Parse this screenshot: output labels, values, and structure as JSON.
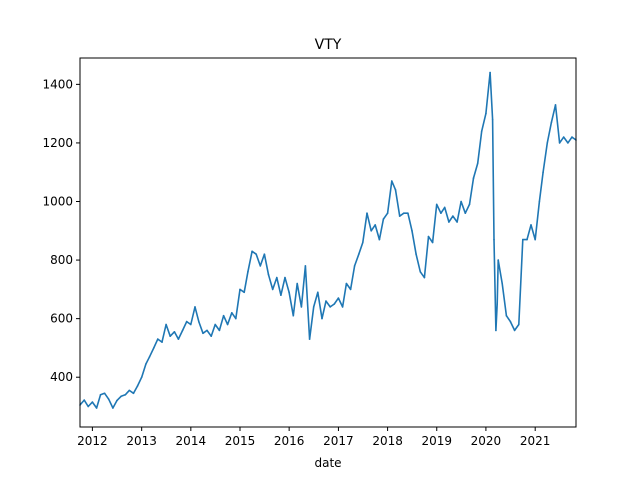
{
  "chart_data": {
    "type": "line",
    "title": "VTY",
    "xlabel": "date",
    "ylabel": "",
    "xlim": [
      "2011-10-01",
      "2021-10-31"
    ],
    "ylim": [
      230,
      1490
    ],
    "x_ticks": [
      {
        "label": "2012",
        "date": "2012-01-01"
      },
      {
        "label": "2013",
        "date": "2013-01-01"
      },
      {
        "label": "2014",
        "date": "2014-01-01"
      },
      {
        "label": "2015",
        "date": "2015-01-01"
      },
      {
        "label": "2016",
        "date": "2016-01-01"
      },
      {
        "label": "2017",
        "date": "2017-01-01"
      },
      {
        "label": "2018",
        "date": "2018-01-01"
      },
      {
        "label": "2019",
        "date": "2019-01-01"
      },
      {
        "label": "2020",
        "date": "2020-01-01"
      },
      {
        "label": "2021",
        "date": "2021-01-01"
      }
    ],
    "y_ticks": [
      400,
      600,
      800,
      1000,
      1200,
      1400
    ],
    "grid": false,
    "colors": {
      "line": "#1f77b4",
      "axes": "#000000",
      "background": "#ffffff"
    },
    "series": [
      {
        "x": [
          "2011-10-01",
          "2011-11-01",
          "2011-12-01",
          "2012-01-01",
          "2012-02-01",
          "2012-03-01",
          "2012-04-01",
          "2012-05-01",
          "2012-06-01",
          "2012-07-01",
          "2012-08-01",
          "2012-09-01",
          "2012-10-01",
          "2012-11-01",
          "2012-12-01",
          "2013-01-01",
          "2013-02-01",
          "2013-03-01",
          "2013-04-01",
          "2013-05-01",
          "2013-06-01",
          "2013-07-01",
          "2013-08-01",
          "2013-09-01",
          "2013-10-01",
          "2013-11-01",
          "2013-12-01",
          "2014-01-01",
          "2014-02-01",
          "2014-03-01",
          "2014-04-01",
          "2014-05-01",
          "2014-06-01",
          "2014-07-01",
          "2014-08-01",
          "2014-09-01",
          "2014-10-01",
          "2014-11-01",
          "2014-12-01",
          "2015-01-01",
          "2015-02-01",
          "2015-03-01",
          "2015-04-01",
          "2015-05-01",
          "2015-06-01",
          "2015-07-01",
          "2015-08-01",
          "2015-09-01",
          "2015-10-01",
          "2015-11-01",
          "2015-12-01",
          "2016-01-01",
          "2016-02-01",
          "2016-03-01",
          "2016-04-01",
          "2016-05-01",
          "2016-06-01",
          "2016-07-01",
          "2016-08-01",
          "2016-09-01",
          "2016-10-01",
          "2016-11-01",
          "2016-12-01",
          "2017-01-01",
          "2017-02-01",
          "2017-03-01",
          "2017-04-01",
          "2017-05-01",
          "2017-06-01",
          "2017-07-01",
          "2017-08-01",
          "2017-09-01",
          "2017-10-01",
          "2017-11-01",
          "2017-12-01",
          "2018-01-01",
          "2018-02-01",
          "2018-03-01",
          "2018-04-01",
          "2018-05-01",
          "2018-06-01",
          "2018-07-01",
          "2018-08-01",
          "2018-09-01",
          "2018-10-01",
          "2018-11-01",
          "2018-12-01",
          "2019-01-01",
          "2019-02-01",
          "2019-03-01",
          "2019-04-01",
          "2019-05-01",
          "2019-06-01",
          "2019-07-01",
          "2019-08-01",
          "2019-09-01",
          "2019-10-01",
          "2019-11-01",
          "2019-12-01",
          "2020-01-01",
          "2020-02-01",
          "2020-02-20",
          "2020-03-01",
          "2020-03-15",
          "2020-03-25",
          "2020-04-01",
          "2020-05-01",
          "2020-06-01",
          "2020-07-01",
          "2020-08-01",
          "2020-09-01",
          "2020-10-01",
          "2020-11-01",
          "2020-12-01",
          "2021-01-01",
          "2021-02-01",
          "2021-03-01",
          "2021-04-01",
          "2021-05-01",
          "2021-06-01",
          "2021-07-01",
          "2021-08-01",
          "2021-09-01",
          "2021-10-01",
          "2021-10-31"
        ],
        "y": [
          305,
          322,
          300,
          315,
          295,
          340,
          345,
          325,
          295,
          320,
          335,
          340,
          355,
          345,
          370,
          400,
          445,
          470,
          500,
          530,
          520,
          580,
          540,
          555,
          530,
          560,
          590,
          580,
          640,
          590,
          550,
          560,
          540,
          580,
          560,
          610,
          580,
          620,
          600,
          700,
          690,
          760,
          830,
          820,
          780,
          820,
          750,
          700,
          740,
          680,
          740,
          690,
          610,
          720,
          640,
          780,
          530,
          640,
          690,
          600,
          660,
          640,
          650,
          670,
          640,
          720,
          700,
          780,
          820,
          860,
          960,
          900,
          920,
          870,
          940,
          960,
          1070,
          1040,
          950,
          960,
          960,
          900,
          820,
          760,
          740,
          880,
          860,
          990,
          960,
          980,
          930,
          950,
          930,
          1000,
          960,
          990,
          1080,
          1130,
          1240,
          1300,
          1440,
          1280,
          870,
          560,
          650,
          800,
          720,
          610,
          590,
          560,
          580,
          870,
          870,
          920,
          870,
          1000,
          1100,
          1200,
          1270,
          1330,
          1200,
          1220,
          1200,
          1220,
          1210
        ]
      }
    ]
  }
}
